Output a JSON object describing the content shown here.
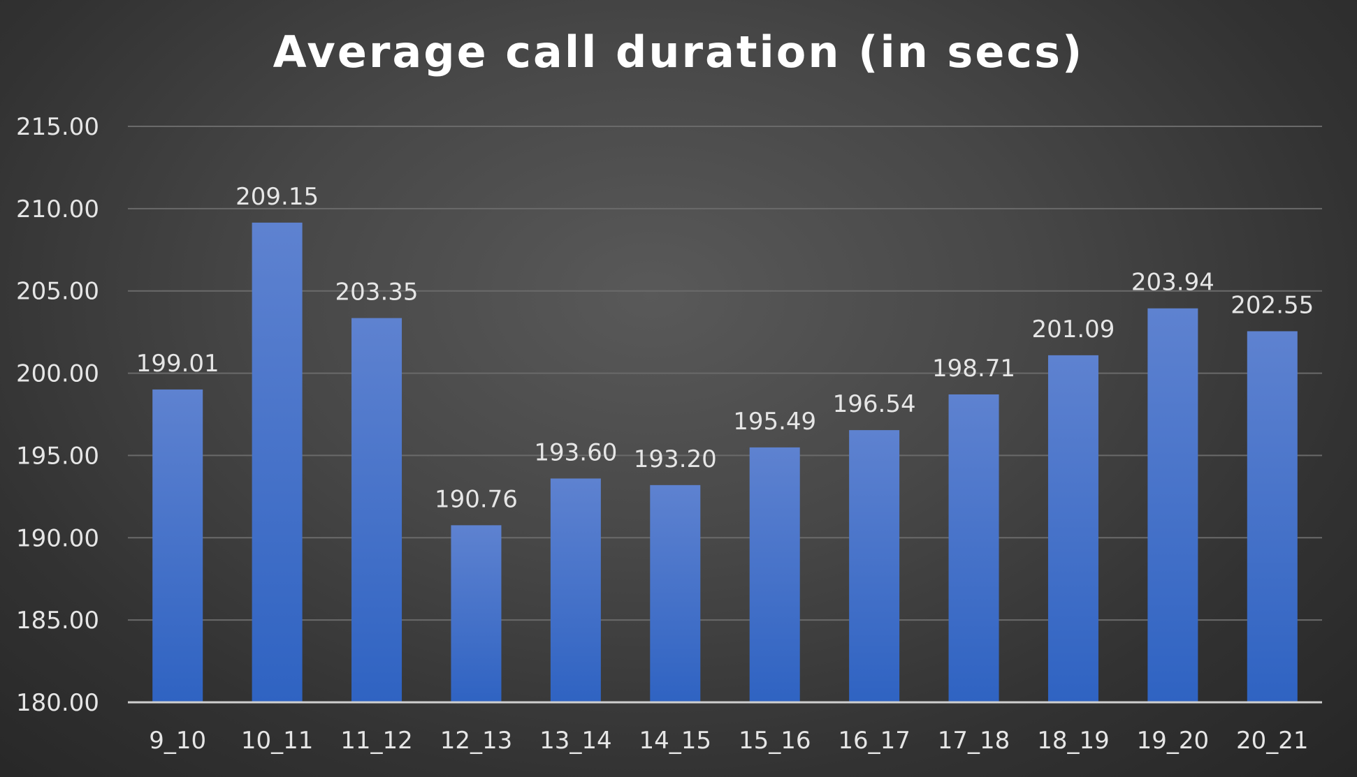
{
  "chart_data": {
    "type": "bar",
    "title": "Average call duration (in secs)",
    "categories": [
      "9_10",
      "10_11",
      "11_12",
      "12_13",
      "13_14",
      "14_15",
      "15_16",
      "16_17",
      "17_18",
      "18_19",
      "19_20",
      "20_21"
    ],
    "values": [
      199.01,
      209.15,
      203.35,
      190.76,
      193.6,
      193.2,
      195.49,
      196.54,
      198.71,
      201.09,
      203.94,
      202.55
    ],
    "value_labels": [
      "199.01",
      "209.15",
      "203.35",
      "190.76",
      "193.60",
      "193.20",
      "195.49",
      "196.54",
      "198.71",
      "201.09",
      "203.94",
      "202.55"
    ],
    "ylim": [
      180,
      215
    ],
    "yticks": [
      180,
      185,
      190,
      195,
      200,
      205,
      210,
      215
    ],
    "ytick_labels": [
      "180.00",
      "185.00",
      "190.00",
      "195.00",
      "200.00",
      "205.00",
      "210.00",
      "215.00"
    ],
    "xlabel": "",
    "ylabel": "",
    "grid": true,
    "legend": "none",
    "colors": {
      "bar_top": "#5e82d0",
      "bar_bottom": "#2f63c2",
      "gridline": "#6a6a6a",
      "axis_line": "#cfcfcf",
      "text": "#e6e6e6"
    }
  }
}
